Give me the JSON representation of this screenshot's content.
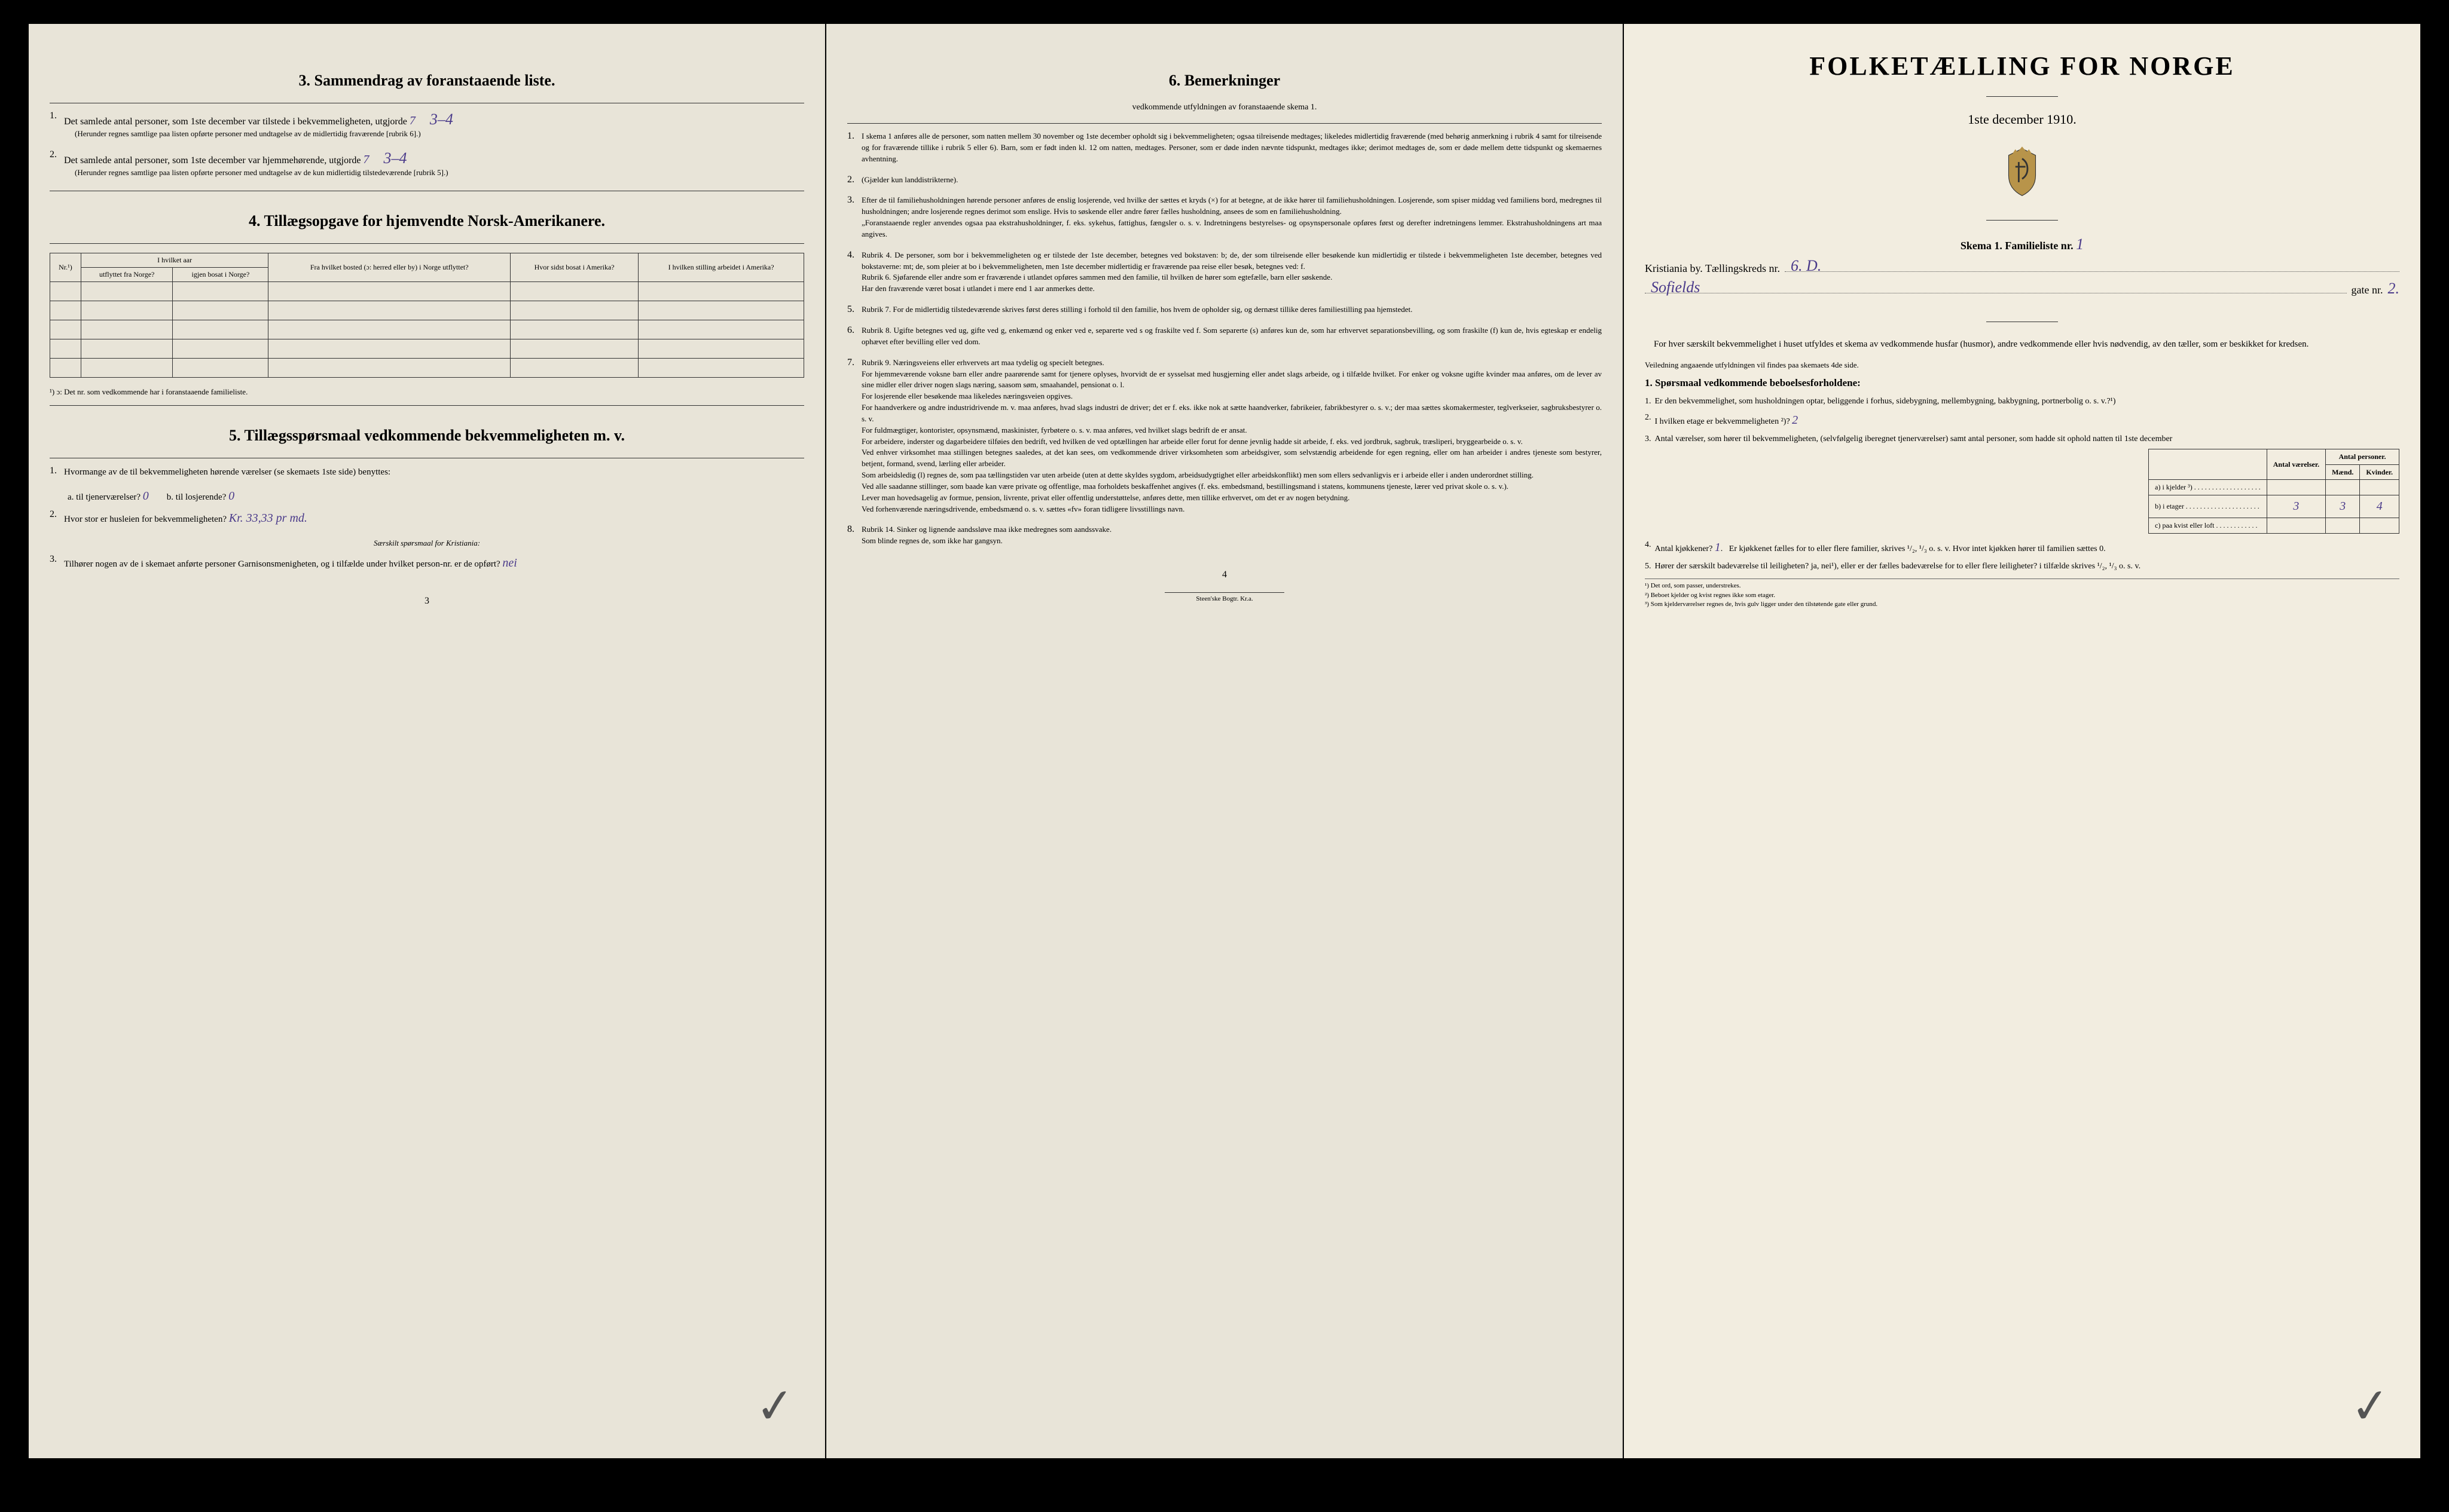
{
  "colors": {
    "paper_left": "#e8e4d8",
    "paper_right": "#f2ede0",
    "ink": "#1a1a1a",
    "handwriting": "#4a3a8a",
    "background": "#000000"
  },
  "left": {
    "sec3_title": "3.   Sammendrag av foranstaaende liste.",
    "q1": "Det samlede antal personer, som 1ste december var tilstede i bekvemmeligheten, utgjorde",
    "q1_val": "7",
    "q1_hand": "3–4",
    "q1_note": "(Herunder regnes samtlige paa listen opførte personer med undtagelse av de midlertidig fraværende [rubrik 6].)",
    "q2": "Det samlede antal personer, som 1ste december var hjemmehørende, utgjorde",
    "q2_val": "7",
    "q2_hand": "3–4",
    "q2_note": "(Herunder regnes samtlige paa listen opførte personer med undtagelse av de kun midlertidig tilstedeværende [rubrik 5].)",
    "sec4_title": "4.   Tillægsopgave for hjemvendte Norsk-Amerikanere.",
    "table": {
      "headers_top": [
        "Nr.¹)",
        "I hvilket aar",
        "Fra hvilket bosted (ɔ: herred eller by) i Norge utflyttet?",
        "Hvor sidst bosat i Amerika?",
        "I hvilken stilling arbeidet i Amerika?"
      ],
      "sub_headers": [
        "utflyttet fra Norge?",
        "igjen bosat i Norge?"
      ],
      "empty_rows": 5,
      "footnote": "¹) ɔ: Det nr. som vedkommende har i foranstaaende familieliste."
    },
    "sec5_title": "5.   Tillægsspørsmaal vedkommende bekvemmeligheten m. v.",
    "q5_1": "Hvormange av de til bekvemmeligheten hørende værelser (se skemaets 1ste side) benyttes:",
    "q5_1a_label": "a.   til tjenerværelser?",
    "q5_1a_val": "0",
    "q5_1b_label": "b.   til losjerende?",
    "q5_1b_val": "0",
    "q5_2": "Hvor stor er husleien for bekvemmeligheten?",
    "q5_2_val": "Kr. 33,33 pr md.",
    "q5_sub": "Særskilt spørsmaal for Kristiania:",
    "q5_3": "Tilhører nogen av de i skemaet anførte personer Garnisonsmenigheten, og i tilfælde under hvilket person-nr. er de opført?",
    "q5_3_val": "nei",
    "page": "3"
  },
  "middle": {
    "title": "6.   Bemerkninger",
    "subtitle": "vedkommende utfyldningen av foranstaaende skema 1.",
    "items": [
      "I skema 1 anføres alle de personer, som natten mellem 30 november og 1ste december opholdt sig i bekvemmeligheten; ogsaa tilreisende medtages; likeledes midlertidig fraværende (med behørig anmerkning i rubrik 4 samt for tilreisende og for fraværende tillike i rubrik 5 eller 6). Barn, som er født inden kl. 12 om natten, medtages. Personer, som er døde inden nævnte tidspunkt, medtages ikke; derimot medtages de, som er døde mellem dette tidspunkt og skemaernes avhentning.",
      "(Gjælder kun landdistrikterne).",
      "Efter de til familiehusholdningen hørende personer anføres de enslig losjerende, ved hvilke der sættes et kryds (×) for at betegne, at de ikke hører til familiehusholdningen. Losjerende, som spiser middag ved familiens bord, medregnes til husholdningen; andre losjerende regnes derimot som enslige. Hvis to søskende eller andre fører fælles husholdning, ansees de som en familiehusholdning.\n„Foranstaaende regler anvendes ogsaa paa ekstrahusholdninger, f. eks. sykehus, fattighus, fængsler o. s. v. Indretningens bestyrelses- og opsynspersonale opføres først og derefter indretningens lemmer. Ekstrahusholdningens art maa angives.",
      "Rubrik 4. De personer, som bor i bekvemmeligheten og er tilstede der 1ste december, betegnes ved bokstaven: b; de, der som tilreisende eller besøkende kun midlertidig er tilstede i bekvemmeligheten 1ste december, betegnes ved bokstaverne: mt; de, som pleier at bo i bekvemmeligheten, men 1ste december midlertidig er fraværende paa reise eller besøk, betegnes ved: f.\nRubrik 6. Sjøfarende eller andre som er fraværende i utlandet opføres sammen med den familie, til hvilken de hører som egtefælle, barn eller søskende.\nHar den fraværende været bosat i utlandet i mere end 1 aar anmerkes dette.",
      "Rubrik 7. For de midlertidig tilstedeværende skrives først deres stilling i forhold til den familie, hos hvem de opholder sig, og dernæst tillike deres familiestilling paa hjemstedet.",
      "Rubrik 8. Ugifte betegnes ved ug, gifte ved g, enkemænd og enker ved e, separerte ved s og fraskilte ved f. Som separerte (s) anføres kun de, som har erhvervet separationsbevilling, og som fraskilte (f) kun de, hvis egteskap er endelig ophævet efter bevilling eller ved dom.",
      "Rubrik 9. Næringsveiens eller erhvervets art maa tydelig og specielt betegnes.\nFor hjemmeværende voksne barn eller andre paarørende samt for tjenere oplyses, hvorvidt de er sysselsat med husgjerning eller andet slags arbeide, og i tilfælde hvilket. For enker og voksne ugifte kvinder maa anføres, om de lever av sine midler eller driver nogen slags næring, saasom søm, smaahandel, pensionat o. l.\nFor losjerende eller besøkende maa likeledes næringsveien opgives.\nFor haandverkere og andre industridrivende m. v. maa anføres, hvad slags industri de driver; det er f. eks. ikke nok at sætte haandverker, fabrikeier, fabrikbestyrer o. s. v.; der maa sættes skomakermester, teglverkseier, sagbruksbestyrer o. s. v.\nFor fuldmægtiger, kontorister, opsynsmænd, maskinister, fyrbøtere o. s. v. maa anføres, ved hvilket slags bedrift de er ansat.\nFor arbeidere, inderster og dagarbeidere tilføies den bedrift, ved hvilken de ved optællingen har arbeide eller forut for denne jevnlig hadde sit arbeide, f. eks. ved jordbruk, sagbruk, træsliperi, bryggearbeide o. s. v.\nVed enhver virksomhet maa stillingen betegnes saaledes, at det kan sees, om vedkommende driver virksomheten som arbeidsgiver, som selvstændig arbeidende for egen regning, eller om han arbeider i andres tjeneste som bestyrer, betjent, formand, svend, lærling eller arbeider.\nSom arbeidsledig (l) regnes de, som paa tællingstiden var uten arbeide (uten at dette skyldes sygdom, arbeidsudygtighet eller arbeidskonflikt) men som ellers sedvanligvis er i arbeide eller i anden underordnet stilling.\nVed alle saadanne stillinger, som baade kan være private og offentlige, maa forholdets beskaffenhet angives (f. eks. embedsmand, bestillingsmand i statens, kommunens tjeneste, lærer ved privat skole o. s. v.).\nLever man hovedsagelig av formue, pension, livrente, privat eller offentlig understøttelse, anføres dette, men tillike erhvervet, om det er av nogen betydning.\nVed forhenværende næringsdrivende, embedsmænd o. s. v. sættes «fv» foran tidligere livsstillings navn.",
      "Rubrik 14. Sinker og lignende aandssløve maa ikke medregnes som aandssvake.\nSom blinde regnes de, som ikke har gangsyn."
    ],
    "page": "4",
    "printer": "Steen'ske Bogtr.  Kr.a."
  },
  "right": {
    "main_title": "FOLKETÆLLING FOR NORGE",
    "date": "1ste december 1910.",
    "skema": "Skema 1.   Familieliste nr.",
    "skema_nr": "1",
    "by": "Kristiania by.   Tællingskreds nr.",
    "kreds_nr": "6. D.",
    "gate_name": "Sofields",
    "gate_label": "gate nr.",
    "gate_nr": "2.",
    "intro1": "For hver særskilt bekvemmelighet i huset utfyldes et skema av vedkommende husfar (husmor), andre vedkommende eller hvis nødvendig, av den tæller, som er beskikket for kredsen.",
    "intro2": "Veiledning angaaende utfyldningen vil findes paa skemaets 4de side.",
    "sec1_title": "1.  Spørsmaal vedkommende beboelsesforholdene:",
    "q1": "Er den bekvemmelighet, som husholdningen optar, beliggende i forhus, sidebygning, mellembygning, bakbygning, portnerbolig o. s. v.?¹)",
    "q2": "I hvilken etage er bekvemmeligheten ²)?",
    "q2_val": "2",
    "q3": "Antal værelser, som hører til bekvemmeligheten, (selvfølgelig iberegnet tjenerværelser) samt antal personer, som hadde sit ophold natten til 1ste december",
    "rooms_table": {
      "headers": [
        "",
        "Antal værelser.",
        "Mænd.",
        "Kvinder."
      ],
      "header_span": "Antal personer.",
      "rows": [
        [
          "a) i kjelder ³) . . . . . . . . . . . . . . . . . . .",
          "",
          "",
          ""
        ],
        [
          "b) i etager . . . . . . . . . . . . . . . . . . . . .",
          "3",
          "3",
          "4"
        ],
        [
          "c) paa kvist eller loft . . . . . . . . . . . .",
          "",
          "",
          ""
        ]
      ]
    },
    "q4": "Antal kjøkkener?",
    "q4_val": "1",
    "q4_rest": "Er kjøkkenet fælles for to eller flere familier, skrives ¹/₂, ¹/₃ o. s. v.  Hvor intet kjøkken hører til familien sættes 0.",
    "q5": "Hører der særskilt badeværelse til leiligheten?  ja, nei¹), eller er der fælles badeværelse for to eller flere leiligheter? i tilfælde skrives ¹/₂, ¹/₃ o. s. v.",
    "q5_val_underline": "nei",
    "footnotes": [
      "¹) Det ord, som passer, understrekes.",
      "²) Beboet kjelder og kvist regnes ikke som etager.",
      "³) Som kjelderværelser regnes de, hvis gulv ligger under den tilstøtende gate eller grund."
    ]
  }
}
